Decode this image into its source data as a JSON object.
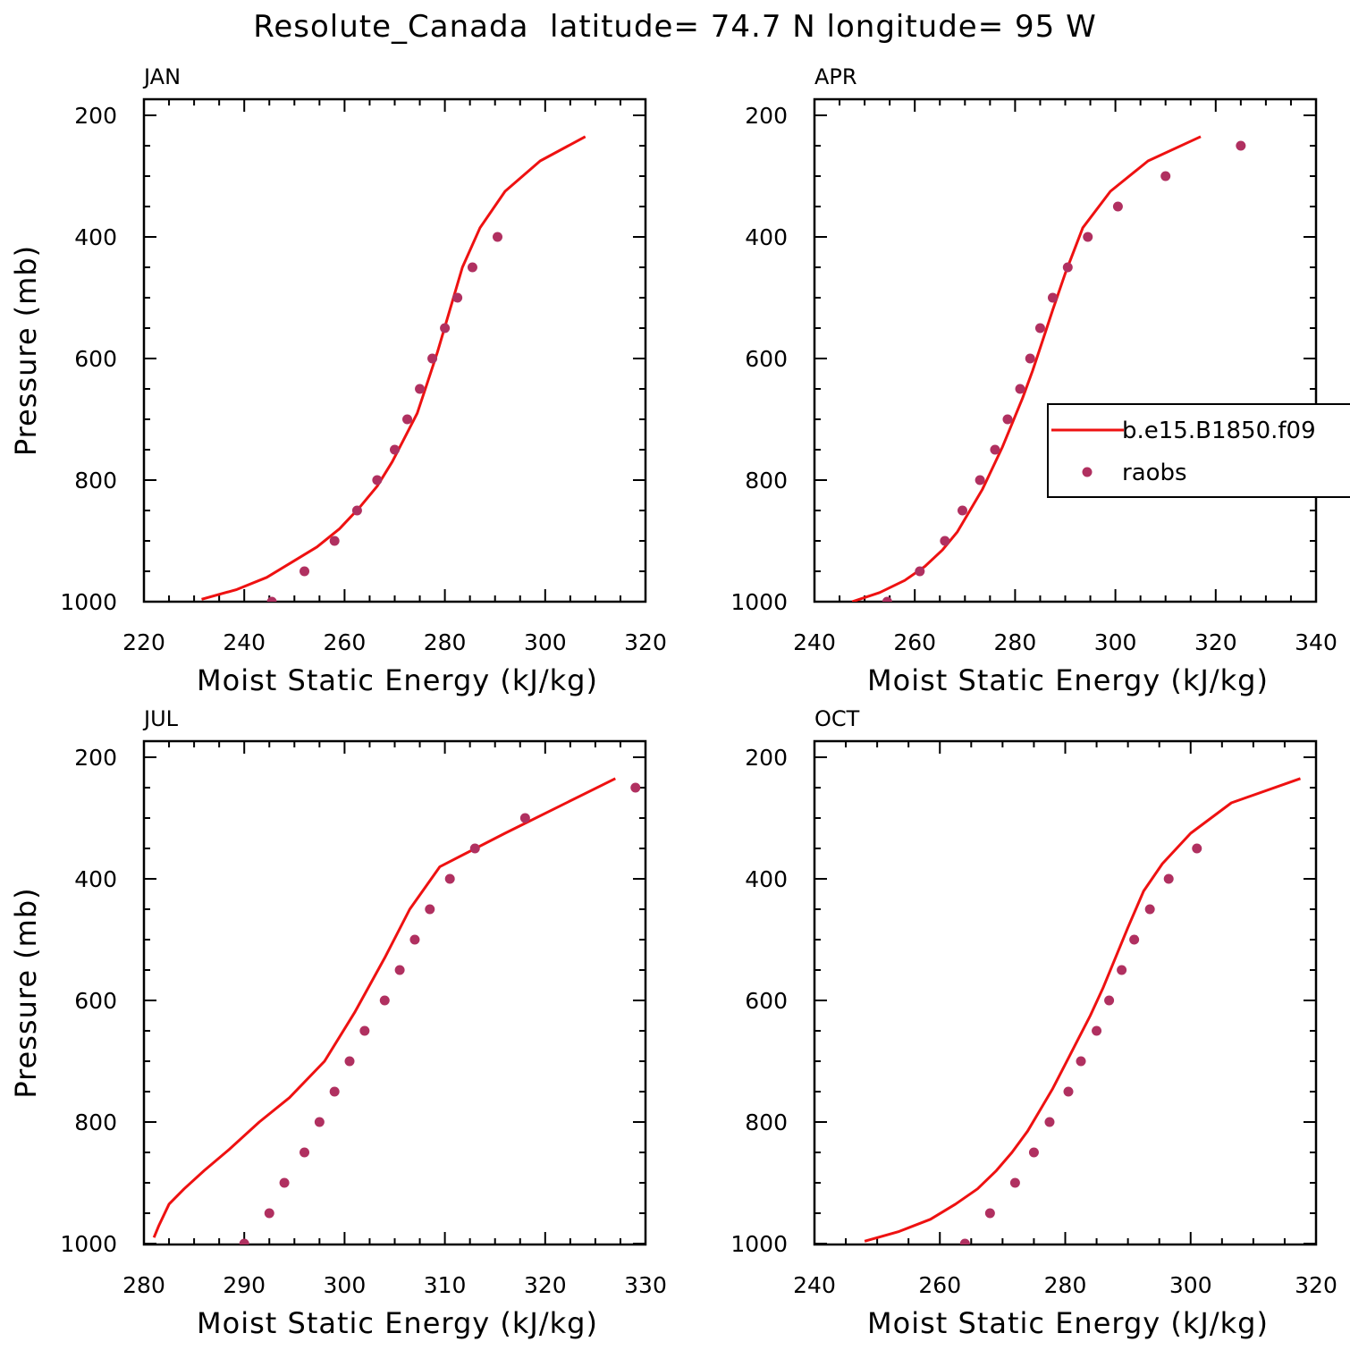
{
  "title": "Resolute_Canada  latitude= 74.7 N longitude= 95 W",
  "colors": {
    "model": "#ee1111",
    "obs": "#b03060",
    "axis": "#000000"
  },
  "legend": {
    "placement": "right-middle of APR panel",
    "model_label": "b.e15.B1850.f09",
    "obs_label": "raobs"
  },
  "chart_data": [
    {
      "type": "line",
      "title": "JAN",
      "xlabel": "Moist Static Energy (kJ/kg)",
      "ylabel": "Pressure (mb)",
      "xlim": [
        220,
        320
      ],
      "ylim": [
        1000,
        200
      ],
      "xticks": [
        220,
        240,
        260,
        280,
        300,
        320
      ],
      "yticks": [
        200,
        400,
        600,
        800,
        1000
      ],
      "grid": false,
      "series": [
        {
          "name": "b.e15.B1850.f09",
          "style": "line",
          "x": [
            231.5,
            238.5,
            244.5,
            249.5,
            254.5,
            259.0,
            263.0,
            266.5,
            269.5,
            272.0,
            274.5,
            276.5,
            278.5,
            281.0,
            283.5,
            287.0,
            292.0,
            299.0,
            308.0
          ],
          "y": [
            996,
            980,
            960,
            935,
            910,
            880,
            845,
            810,
            770,
            730,
            690,
            640,
            590,
            520,
            450,
            385,
            325,
            275,
            235
          ]
        },
        {
          "name": "raobs",
          "style": "dots",
          "x": [
            245.5,
            252.0,
            258.0,
            262.5,
            266.5,
            270.0,
            272.5,
            275.0,
            277.5,
            280.0,
            282.5,
            285.5,
            290.5
          ],
          "y": [
            1000,
            950,
            900,
            850,
            800,
            750,
            700,
            650,
            600,
            550,
            500,
            450,
            400
          ]
        }
      ]
    },
    {
      "type": "line",
      "title": "APR",
      "xlabel": "Moist Static Energy (kJ/kg)",
      "ylabel": "",
      "xlim": [
        240,
        340
      ],
      "ylim": [
        1000,
        200
      ],
      "xticks": [
        240,
        260,
        280,
        300,
        320,
        340
      ],
      "yticks": [
        200,
        400,
        600,
        800,
        1000
      ],
      "grid": false,
      "series": [
        {
          "name": "b.e15.B1850.f09",
          "style": "line",
          "x": [
            247.5,
            253.0,
            258.0,
            262.0,
            265.5,
            268.5,
            271.0,
            273.5,
            275.5,
            277.5,
            279.5,
            281.5,
            283.5,
            285.5,
            287.5,
            290.0,
            293.5,
            299.0,
            306.5,
            317.0
          ],
          "y": [
            1000,
            985,
            965,
            942,
            915,
            885,
            850,
            815,
            780,
            745,
            705,
            665,
            620,
            570,
            520,
            460,
            385,
            325,
            275,
            235
          ]
        },
        {
          "name": "raobs",
          "style": "dots",
          "x": [
            254.5,
            261.0,
            266.0,
            269.5,
            273.0,
            276.0,
            278.5,
            281.0,
            283.0,
            285.0,
            287.5,
            290.5,
            294.5,
            300.5,
            310.0,
            325.0
          ],
          "y": [
            1000,
            950,
            900,
            850,
            800,
            750,
            700,
            650,
            600,
            550,
            500,
            450,
            400,
            350,
            300,
            250
          ]
        }
      ]
    },
    {
      "type": "line",
      "title": "JUL",
      "xlabel": "Moist Static Energy (kJ/kg)",
      "ylabel": "Pressure (mb)",
      "xlim": [
        280,
        330
      ],
      "ylim": [
        1000,
        200
      ],
      "xticks": [
        280,
        290,
        300,
        310,
        320,
        330
      ],
      "yticks": [
        200,
        400,
        600,
        800,
        1000
      ],
      "grid": false,
      "series": [
        {
          "name": "b.e15.B1850.f09",
          "style": "line",
          "x": [
            281.0,
            281.5,
            282.5,
            284.0,
            286.0,
            288.5,
            291.5,
            294.5,
            298.0,
            301.0,
            304.0,
            306.5,
            309.5,
            316.0,
            327.0
          ],
          "y": [
            990,
            970,
            935,
            910,
            880,
            845,
            800,
            760,
            700,
            620,
            530,
            450,
            380,
            325,
            235
          ]
        },
        {
          "name": "raobs",
          "style": "dots",
          "x": [
            290.0,
            292.5,
            294.0,
            296.0,
            297.5,
            299.0,
            300.5,
            302.0,
            304.0,
            305.5,
            307.0,
            308.5,
            310.5,
            313.0,
            318.0,
            329.0
          ],
          "y": [
            1000,
            950,
            900,
            850,
            800,
            750,
            700,
            650,
            600,
            550,
            500,
            450,
            400,
            350,
            300,
            250
          ]
        }
      ]
    },
    {
      "type": "line",
      "title": "OCT",
      "xlabel": "Moist Static Energy (kJ/kg)",
      "ylabel": "",
      "xlim": [
        240,
        320
      ],
      "ylim": [
        1000,
        200
      ],
      "xticks": [
        240,
        260,
        280,
        300,
        320
      ],
      "yticks": [
        200,
        400,
        600,
        800,
        1000
      ],
      "grid": false,
      "series": [
        {
          "name": "b.e15.B1850.f09",
          "style": "line",
          "x": [
            248.0,
            253.5,
            258.5,
            262.5,
            266.0,
            269.0,
            271.5,
            274.0,
            276.0,
            278.0,
            280.0,
            282.0,
            284.0,
            286.0,
            288.0,
            290.0,
            292.5,
            295.5,
            300.0,
            306.5,
            317.5
          ],
          "y": [
            996,
            980,
            960,
            935,
            910,
            880,
            850,
            815,
            780,
            745,
            705,
            665,
            625,
            580,
            530,
            480,
            420,
            375,
            325,
            275,
            235
          ]
        },
        {
          "name": "raobs",
          "style": "dots",
          "x": [
            264.0,
            268.0,
            272.0,
            275.0,
            277.5,
            280.5,
            282.5,
            285.0,
            287.0,
            289.0,
            291.0,
            293.5,
            296.5,
            301.0
          ],
          "y": [
            1000,
            950,
            900,
            850,
            800,
            750,
            700,
            650,
            600,
            550,
            500,
            450,
            400,
            350
          ]
        }
      ]
    }
  ]
}
